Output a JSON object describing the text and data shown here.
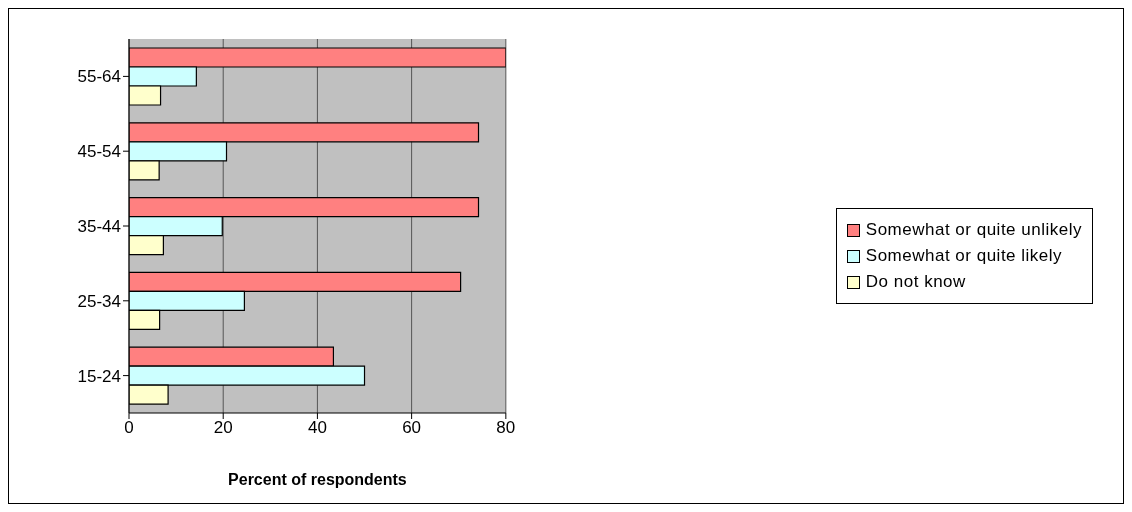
{
  "chart_data": {
    "type": "bar",
    "orientation": "horizontal",
    "xlabel": "Percent of respondents",
    "categories": [
      "55-64",
      "45-54",
      "35-44",
      "25-34",
      "15-24"
    ],
    "series": [
      {
        "name": "Somewhat or quite unlikely",
        "color": "#ff8080",
        "values": [
          80,
          74.2,
          74.2,
          70.4,
          43.4
        ]
      },
      {
        "name": "Somewhat or quite likely",
        "color": "#ccffff",
        "values": [
          14.3,
          20.7,
          19.8,
          24.5,
          50
        ]
      },
      {
        "name": "Do not know",
        "color": "#ffffcc",
        "values": [
          6.7,
          6.4,
          7.3,
          6.5,
          8.3
        ]
      }
    ],
    "xlim": [
      0,
      80
    ],
    "xticks": [
      0,
      20,
      40,
      60,
      80
    ],
    "grid": "x",
    "legend": "right"
  }
}
